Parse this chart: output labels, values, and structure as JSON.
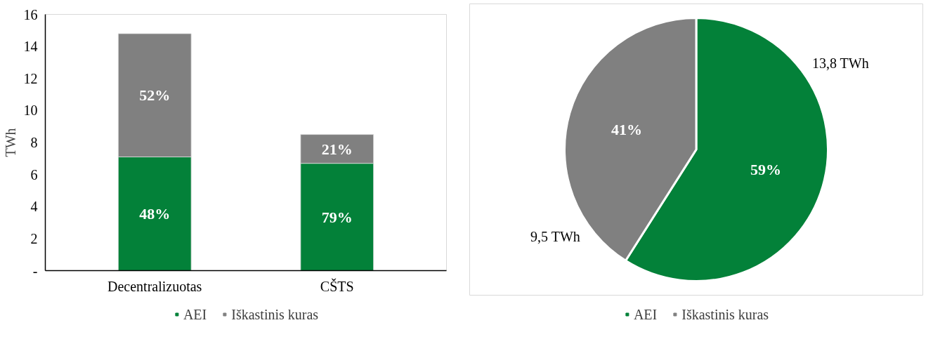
{
  "chart_data": [
    {
      "type": "bar",
      "stacked": true,
      "categories": [
        "Decentralizuotas",
        "CŠTS"
      ],
      "ylabel": "TWh",
      "ylim": [
        0,
        16
      ],
      "yticks": [
        {
          "value": 0,
          "label": "-"
        },
        2,
        4,
        6,
        8,
        10,
        12,
        14,
        16
      ],
      "grid": false,
      "legend": "bottom",
      "series": [
        {
          "name": "AEI",
          "color": "#038139",
          "values": [
            7.1,
            6.7
          ]
        },
        {
          "name": "Iškastinis kuras",
          "color": "#808080",
          "values": [
            7.7,
            1.8
          ]
        }
      ],
      "annotations": [
        "48%",
        "79%",
        "52%",
        "21%"
      ]
    },
    {
      "type": "pie",
      "categories": [
        "AEI",
        "Iškastinis kuras"
      ],
      "values": [
        59,
        41
      ],
      "colors": [
        "#038139",
        "#808080"
      ],
      "value_labels": [
        "59%",
        "41%"
      ],
      "legend": "bottom",
      "annotations": [
        "13,8 TWh",
        "9,5 TWh"
      ]
    }
  ]
}
